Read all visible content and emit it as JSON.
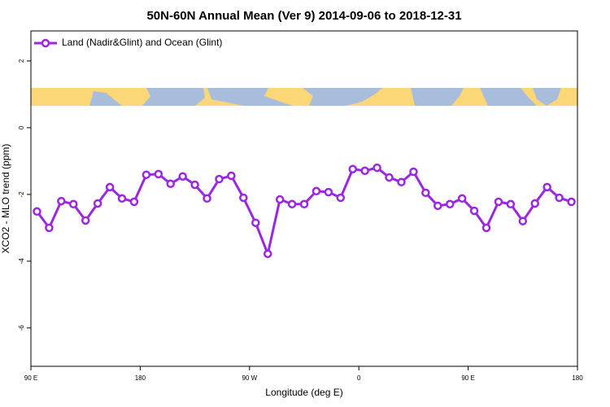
{
  "chart_data": {
    "type": "line",
    "title": "50N-60N Annual Mean (Ver 9)   2014-09-06 to 2018-12-31",
    "x_label": "Longitude (deg E)",
    "y_label": "XCO2 - MLO trend (ppm)",
    "x": [
      95,
      105,
      115,
      125,
      135,
      145,
      155,
      165,
      175,
      185,
      195,
      205,
      215,
      225,
      235,
      245,
      255,
      265,
      275,
      285,
      295,
      305,
      315,
      325,
      335,
      345,
      355,
      365,
      375,
      385,
      395,
      405,
      415,
      425,
      435,
      445,
      455,
      465,
      475,
      485,
      495,
      505,
      515,
      525,
      535
    ],
    "series": [
      {
        "name": "Land (Nadir&Glint) and Ocean (Glint)",
        "color": "#9b27e0",
        "values": [
          -2.51,
          -3.0,
          -2.2,
          -2.29,
          -2.78,
          -2.27,
          -1.78,
          -2.12,
          -2.22,
          -1.41,
          -1.39,
          -1.68,
          -1.46,
          -1.71,
          -2.12,
          -1.54,
          -1.44,
          -2.1,
          -2.85,
          -3.78,
          -2.15,
          -2.29,
          -2.29,
          -1.9,
          -1.93,
          -2.1,
          -1.24,
          -1.29,
          -1.2,
          -1.49,
          -1.63,
          -1.32,
          -1.95,
          -2.34,
          -2.29,
          -2.12,
          -2.49,
          -3.0,
          -2.22,
          -2.29,
          -2.8,
          -2.27,
          -1.78,
          -2.1,
          -2.22
        ]
      }
    ],
    "xlim": [
      90,
      540
    ],
    "xticks": [
      {
        "value": 90,
        "label": "90 E"
      },
      180,
      {
        "value": 270,
        "label": "90 W"
      },
      {
        "value": 360,
        "label": "0"
      },
      {
        "value": 450,
        "label": "90 E"
      },
      {
        "value": 540,
        "label": "180"
      }
    ],
    "ylim": [
      -7.15,
      2.9
    ],
    "yticks": [
      2,
      0,
      -2,
      -4,
      -6
    ],
    "legend": "top-left"
  }
}
